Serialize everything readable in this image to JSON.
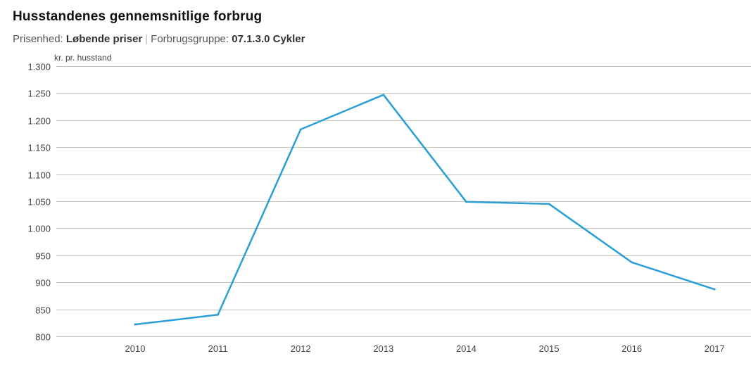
{
  "header": {
    "title": "Husstandenes gennemsnitlige forbrug",
    "price_unit_label": "Prisenhed:",
    "price_unit_value": "Løbende priser",
    "separator": "|",
    "group_label": "Forbrugsgruppe:",
    "group_value": "07.1.3.0 Cykler"
  },
  "chart_data": {
    "type": "line",
    "title": "",
    "ylabel": "kr. pr. husstand",
    "xlabel": "",
    "ylim": [
      800,
      1300
    ],
    "yticks": [
      800,
      850,
      900,
      950,
      1000,
      1050,
      1100,
      1150,
      1200,
      1250,
      1300
    ],
    "ytick_labels": [
      "800",
      "850",
      "900",
      "950",
      "1.000",
      "1.050",
      "1.100",
      "1.150",
      "1.200",
      "1.250",
      "1.300"
    ],
    "categories": [
      "2010",
      "2011",
      "2012",
      "2013",
      "2014",
      "2015",
      "2016",
      "2017"
    ],
    "series": [
      {
        "values": [
          822,
          840,
          1183,
          1247,
          1049,
          1045,
          937,
          887
        ],
        "color": "#2a9fd6"
      }
    ],
    "grid": true,
    "gridColor": "#c8c4b8"
  }
}
